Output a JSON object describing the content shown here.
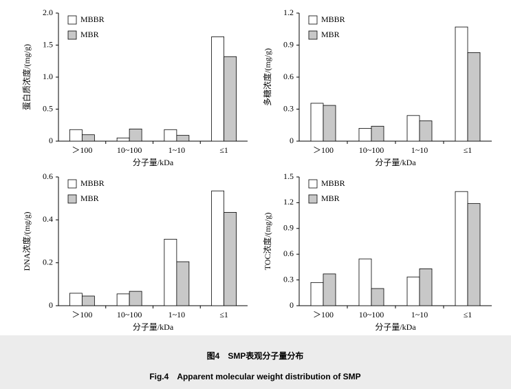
{
  "chart_data": [
    {
      "type": "bar",
      "ylabel": "蛋白质浓度/(mg/g)",
      "xlabel": "分子量/kDa",
      "categories": [
        "＞100",
        "10~100",
        "1~10",
        "≤1"
      ],
      "series": [
        {
          "name": "MBBR",
          "color": "#ffffff",
          "values": [
            0.18,
            0.05,
            0.18,
            1.63
          ]
        },
        {
          "name": "MBR",
          "color": "#c8c8c8",
          "values": [
            0.1,
            0.19,
            0.09,
            1.32
          ]
        }
      ],
      "ylim": [
        0,
        2.0
      ],
      "yticks": [
        0,
        0.5,
        {
          "value": 1.0,
          "label": "1.0"
        },
        1.5,
        {
          "value": 2.0,
          "label": "2.0"
        }
      ]
    },
    {
      "type": "bar",
      "ylabel": "多糖浓度/(mg/g)",
      "xlabel": "分子量/kDa",
      "categories": [
        "＞100",
        "10~100",
        "1~10",
        "≤1"
      ],
      "series": [
        {
          "name": "MBBR",
          "color": "#ffffff",
          "values": [
            0.355,
            0.12,
            0.24,
            1.07
          ]
        },
        {
          "name": "MBR",
          "color": "#c8c8c8",
          "values": [
            0.335,
            0.14,
            0.19,
            0.83
          ]
        }
      ],
      "ylim": [
        0,
        1.2
      ],
      "yticks": [
        0,
        0.3,
        0.6,
        0.9,
        1.2
      ]
    },
    {
      "type": "bar",
      "ylabel": "DNA浓度/(mg/g)",
      "xlabel": "分子量/kDa",
      "categories": [
        "＞100",
        "10~100",
        "1~10",
        "≤1"
      ],
      "series": [
        {
          "name": "MBBR",
          "color": "#ffffff",
          "values": [
            0.058,
            0.055,
            0.31,
            0.535
          ]
        },
        {
          "name": "MBR",
          "color": "#c8c8c8",
          "values": [
            0.045,
            0.067,
            0.205,
            0.435
          ]
        }
      ],
      "ylim": [
        0,
        0.6
      ],
      "yticks": [
        0,
        0.2,
        0.4,
        0.6
      ]
    },
    {
      "type": "bar",
      "ylabel": "TOC浓度/(mg/g)",
      "xlabel": "分子量/kDa",
      "categories": [
        "＞100",
        "10~100",
        "1~10",
        "≤1"
      ],
      "series": [
        {
          "name": "MBBR",
          "color": "#ffffff",
          "values": [
            0.27,
            0.545,
            0.335,
            1.33
          ]
        },
        {
          "name": "MBR",
          "color": "#c8c8c8",
          "values": [
            0.37,
            0.2,
            0.43,
            1.19
          ]
        }
      ],
      "ylim": [
        0,
        1.5
      ],
      "yticks": [
        0,
        0.3,
        0.6,
        0.9,
        1.2,
        1.5
      ]
    }
  ],
  "caption": {
    "zh": "图4　SMP表观分子量分布",
    "en": "Fig.4　Apparent molecular weight distribution of SMP"
  }
}
